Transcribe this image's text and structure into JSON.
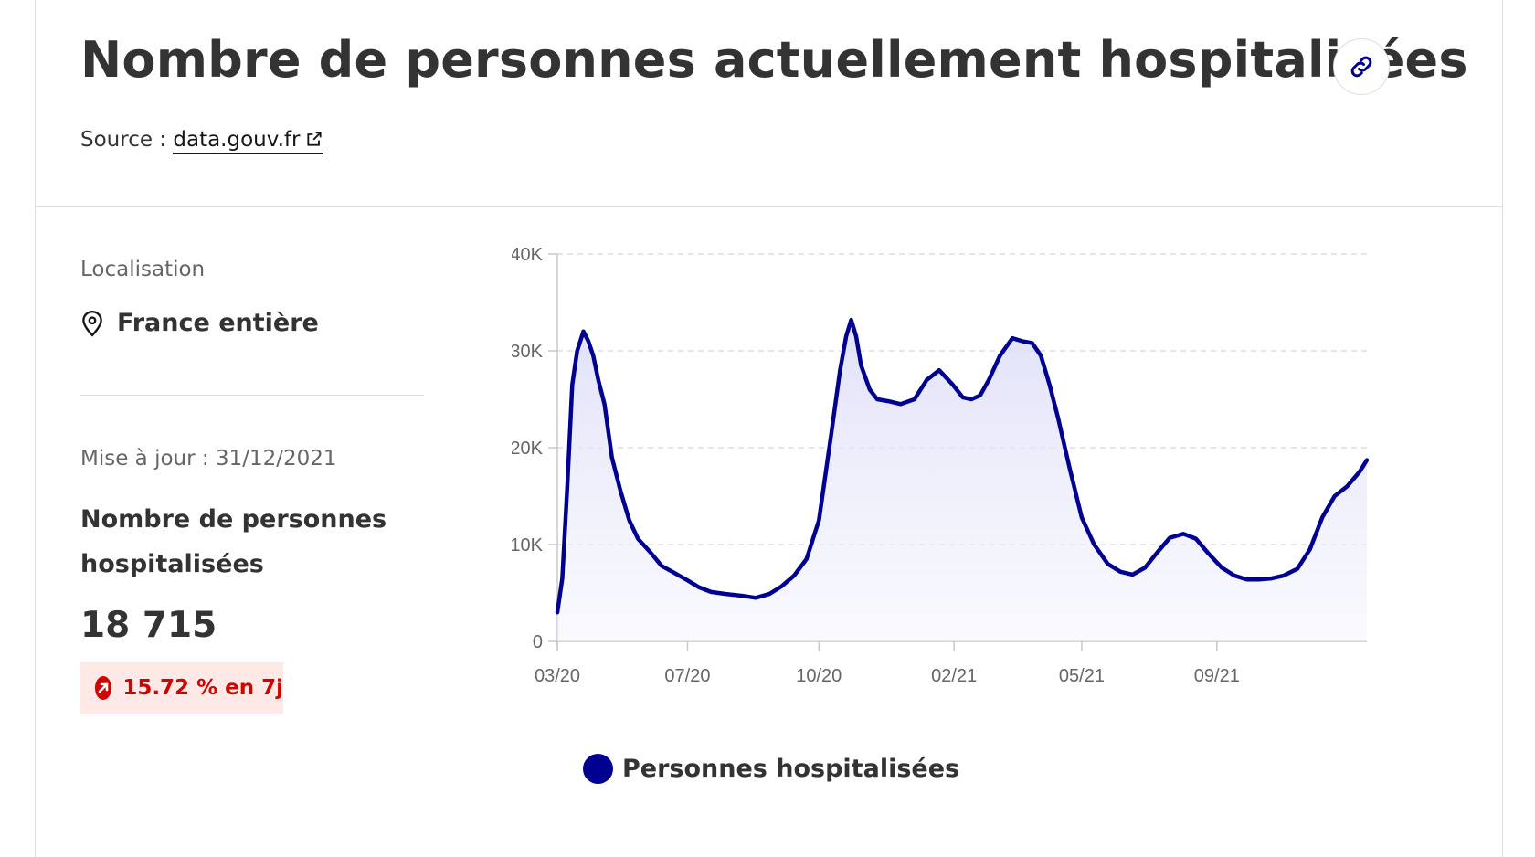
{
  "header": {
    "title": "Nombre de personnes actuellement hospitalisées",
    "source_prefix": "Source : ",
    "source_link": "data.gouv.fr"
  },
  "sidebar": {
    "location_label": "Localisation",
    "location_value": "France entière",
    "update_text": "Mise à jour : 31/12/2021",
    "metric_name": "Nombre de personnes hospitalisées",
    "metric_value": "18 715",
    "change_badge": "15.72 % en 7j"
  },
  "colors": {
    "series": "#000091",
    "badge_text": "#ce0500",
    "badge_bg": "#fee9e7"
  },
  "icons": {
    "link": "link-icon",
    "external": "external-link-icon",
    "location": "map-pin-icon",
    "trend": "arrow-up-right-icon"
  },
  "legend": {
    "label": "Personnes hospitalisées"
  },
  "chart_data": {
    "type": "area",
    "x_ticks": [
      "03/20",
      "07/20",
      "10/20",
      "02/21",
      "05/21",
      "09/21"
    ],
    "y_ticks": [
      "0",
      "10K",
      "20K",
      "30K",
      "40K"
    ],
    "ylim": [
      0,
      40000
    ],
    "grid": "horizontal-dashed",
    "legend_position": "bottom",
    "series": [
      {
        "name": "Personnes hospitalisées",
        "x": [
          "2020-03-18",
          "2020-03-22",
          "2020-03-26",
          "2020-03-30",
          "2020-04-03",
          "2020-04-08",
          "2020-04-12",
          "2020-04-16",
          "2020-04-20",
          "2020-04-25",
          "2020-05-01",
          "2020-05-08",
          "2020-05-15",
          "2020-05-22",
          "2020-06-01",
          "2020-06-10",
          "2020-06-20",
          "2020-07-01",
          "2020-07-10",
          "2020-07-20",
          "2020-08-01",
          "2020-08-15",
          "2020-08-25",
          "2020-09-05",
          "2020-09-15",
          "2020-09-25",
          "2020-10-05",
          "2020-10-15",
          "2020-10-25",
          "2020-11-01",
          "2020-11-06",
          "2020-11-10",
          "2020-11-14",
          "2020-11-18",
          "2020-11-25",
          "2020-12-01",
          "2020-12-10",
          "2020-12-20",
          "2020-12-31",
          "2021-01-10",
          "2021-01-20",
          "2021-01-31",
          "2021-02-08",
          "2021-02-15",
          "2021-02-22",
          "2021-03-01",
          "2021-03-10",
          "2021-03-20",
          "2021-03-28",
          "2021-04-05",
          "2021-04-12",
          "2021-04-19",
          "2021-04-26",
          "2021-05-05",
          "2021-05-15",
          "2021-05-25",
          "2021-06-05",
          "2021-06-15",
          "2021-06-25",
          "2021-07-05",
          "2021-07-15",
          "2021-07-25",
          "2021-08-05",
          "2021-08-15",
          "2021-08-25",
          "2021-09-05",
          "2021-09-15",
          "2021-09-25",
          "2021-10-05",
          "2021-10-15",
          "2021-10-25",
          "2021-11-05",
          "2021-11-15",
          "2021-11-25",
          "2021-12-05",
          "2021-12-15",
          "2021-12-25",
          "2021-12-31"
        ],
        "values": [
          3000,
          6500,
          16000,
          26500,
          30000,
          32000,
          31000,
          29500,
          27000,
          24500,
          19000,
          15500,
          12500,
          10600,
          9200,
          7800,
          7100,
          6300,
          5600,
          5100,
          4900,
          4700,
          4500,
          4900,
          5700,
          6800,
          8500,
          12500,
          21500,
          28000,
          31500,
          33200,
          31500,
          28500,
          26000,
          25000,
          24800,
          24500,
          25000,
          27000,
          28000,
          26500,
          25200,
          25000,
          25400,
          27000,
          29500,
          31300,
          31000,
          30800,
          29500,
          26500,
          23000,
          18000,
          12800,
          10000,
          8000,
          7200,
          6900,
          7600,
          9200,
          10700,
          11100,
          10600,
          9100,
          7600,
          6800,
          6400,
          6400,
          6500,
          6800,
          7500,
          9500,
          12800,
          15000,
          16000,
          17500,
          18715
        ]
      }
    ]
  }
}
